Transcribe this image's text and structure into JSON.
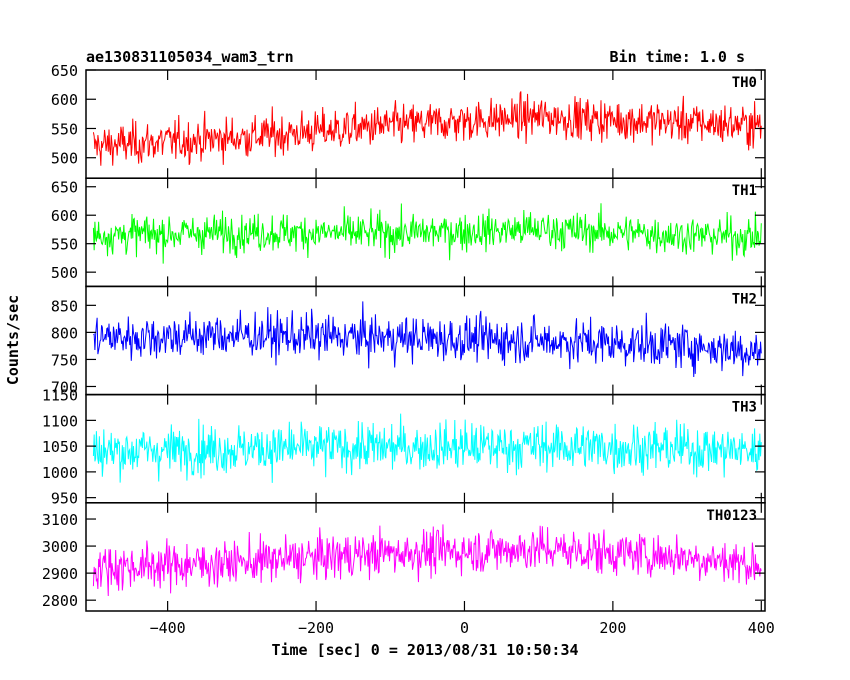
{
  "header": {
    "title": "ae130831105034_wam3_trn",
    "bin_time": "Bin time: 1.0 s"
  },
  "axes": {
    "ylabel": "Counts/sec",
    "xlabel": "Time [sec] 0 = 2013/08/31 10:50:34",
    "xlim": [
      -510,
      405
    ],
    "xticks": [
      -400,
      -200,
      0,
      200,
      400
    ],
    "xtick_labels": [
      "−400",
      "−200",
      "0",
      "200",
      "400"
    ]
  },
  "chart_data": [
    {
      "type": "line",
      "name": "TH0",
      "color": "#ff0000",
      "ylim": [
        465,
        650
      ],
      "yticks": [
        500,
        550,
        600,
        650
      ],
      "x_range": [
        -500,
        400
      ],
      "mean_trend": {
        "x": [
          -500,
          -300,
          -100,
          100,
          300,
          400
        ],
        "y": [
          520,
          535,
          555,
          570,
          560,
          555
        ]
      },
      "noise_amplitude": 30
    },
    {
      "type": "line",
      "name": "TH1",
      "color": "#00ff00",
      "ylim": [
        475,
        665
      ],
      "yticks": [
        500,
        550,
        600,
        650
      ],
      "x_range": [
        -500,
        400
      ],
      "mean_trend": {
        "x": [
          -500,
          -300,
          -100,
          100,
          300,
          400
        ],
        "y": [
          565,
          570,
          568,
          575,
          565,
          562
        ]
      },
      "noise_amplitude": 28
    },
    {
      "type": "line",
      "name": "TH2",
      "color": "#0000ff",
      "ylim": [
        685,
        885
      ],
      "yticks": [
        700,
        750,
        800,
        850
      ],
      "x_range": [
        -500,
        400
      ],
      "mean_trend": {
        "x": [
          -500,
          -300,
          -100,
          100,
          300,
          400
        ],
        "y": [
          790,
          795,
          790,
          785,
          775,
          765
        ]
      },
      "noise_amplitude": 35
    },
    {
      "type": "line",
      "name": "TH3",
      "color": "#00ffff",
      "ylim": [
        940,
        1150
      ],
      "yticks": [
        950,
        1000,
        1050,
        1100,
        1150
      ],
      "x_range": [
        -500,
        400
      ],
      "mean_trend": {
        "x": [
          -500,
          -300,
          -100,
          100,
          300,
          400
        ],
        "y": [
          1040,
          1045,
          1048,
          1050,
          1045,
          1040
        ]
      },
      "noise_amplitude": 40
    },
    {
      "type": "line",
      "name": "TH0123",
      "color": "#ff00ff",
      "ylim": [
        2760,
        3160
      ],
      "yticks": [
        2800,
        2900,
        3000,
        3100
      ],
      "x_range": [
        -500,
        400
      ],
      "mean_trend": {
        "x": [
          -500,
          -300,
          -100,
          100,
          300,
          400
        ],
        "y": [
          2920,
          2940,
          2975,
          2990,
          2960,
          2930
        ]
      },
      "noise_amplitude": 70
    }
  ]
}
